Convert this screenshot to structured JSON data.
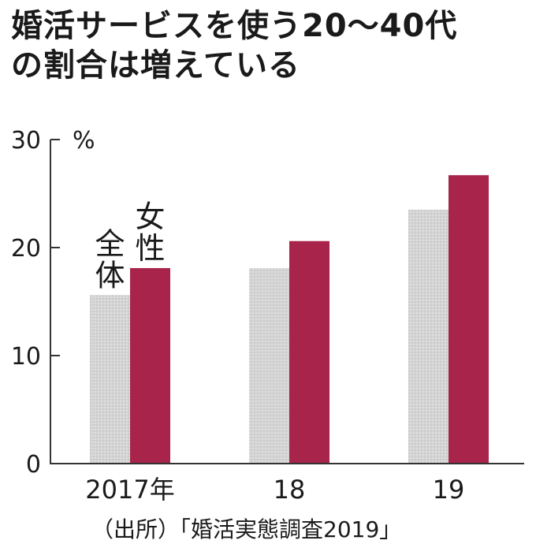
{
  "title_lines": [
    "婚活サービスを使う20～40代",
    "の割合は増えている"
  ],
  "source": "（出所）「婚活実態調査2019」",
  "colors": {
    "overall": "#d4d4d4",
    "women": "#a8244a",
    "axis": "#333333"
  },
  "chart_data": {
    "type": "bar",
    "categories": [
      "2017年",
      "18",
      "19"
    ],
    "series": [
      {
        "name": "全体",
        "values": [
          15.6,
          18.1,
          23.5
        ]
      },
      {
        "name": "女性",
        "values": [
          18.1,
          20.6,
          26.7
        ]
      }
    ],
    "yunit": "%",
    "ylim": [
      0,
      30
    ],
    "yticks": [
      0,
      10,
      20,
      30
    ],
    "grid": false
  }
}
